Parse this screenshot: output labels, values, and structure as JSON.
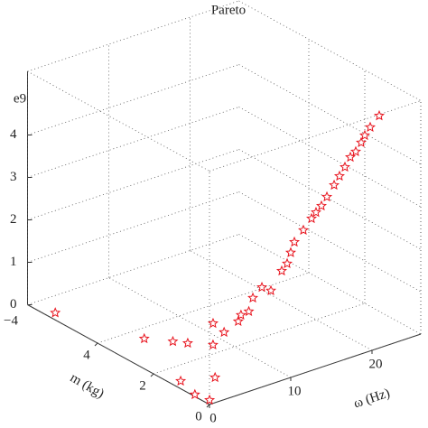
{
  "chart_data": {
    "type": "scatter3d",
    "title": "Pareto",
    "x_label": "ω (Hz)",
    "y_label": "m (kg)",
    "annotations": [
      "e9",
      "−4"
    ],
    "xlim": [
      0,
      26
    ],
    "ylim": [
      0,
      6.5
    ],
    "zlim": [
      0,
      5.5
    ],
    "xticks": [
      0,
      10,
      20
    ],
    "yticks": [
      0,
      2,
      4
    ],
    "zticks": [
      0,
      1,
      2,
      3,
      4
    ],
    "grid": true,
    "series": [
      {
        "color": "#e8141e",
        "x": [
          1.0,
          4.2,
          6.0,
          6.9,
          1.07,
          4.2,
          0.27,
          0.63,
          8.6,
          11.2,
          13.8,
          16.0,
          11.6,
          14.9,
          7.06,
          8.17,
          9.28,
          10.61,
          11.28,
          11.72,
          12.17,
          13.28,
          14.28,
          14.83,
          15.5,
          16.17,
          17.06,
          17.72,
          18.39,
          19.06,
          19.72,
          20.39,
          20.83,
          21.5,
          22.61
        ],
        "y": [
          5.8,
          3.55,
          3.05,
          2.78,
          1.34,
          1.02,
          0.6,
          0.18,
          2.37,
          2.73,
          2.98,
          3.24,
          3.24,
          3.2,
          0.5,
          0.5,
          0.5,
          0.5,
          0.5,
          0.5,
          0.5,
          0.5,
          0.5,
          0.5,
          0.5,
          0.5,
          0.5,
          0.5,
          0.5,
          0.5,
          0.5,
          0.5,
          0.5,
          0.5,
          0.5
        ],
        "z": [
          0,
          0,
          0,
          0,
          0,
          0,
          0,
          0,
          0,
          0,
          0,
          0,
          0,
          0,
          1.88,
          2.06,
          1.91,
          2.29,
          2.42,
          2.65,
          2.87,
          3.08,
          3.29,
          3.4,
          3.51,
          3.68,
          3.9,
          4.07,
          4.24,
          4.43,
          4.52,
          4.69,
          4.83,
          4.98,
          5.18
        ]
      }
    ]
  }
}
